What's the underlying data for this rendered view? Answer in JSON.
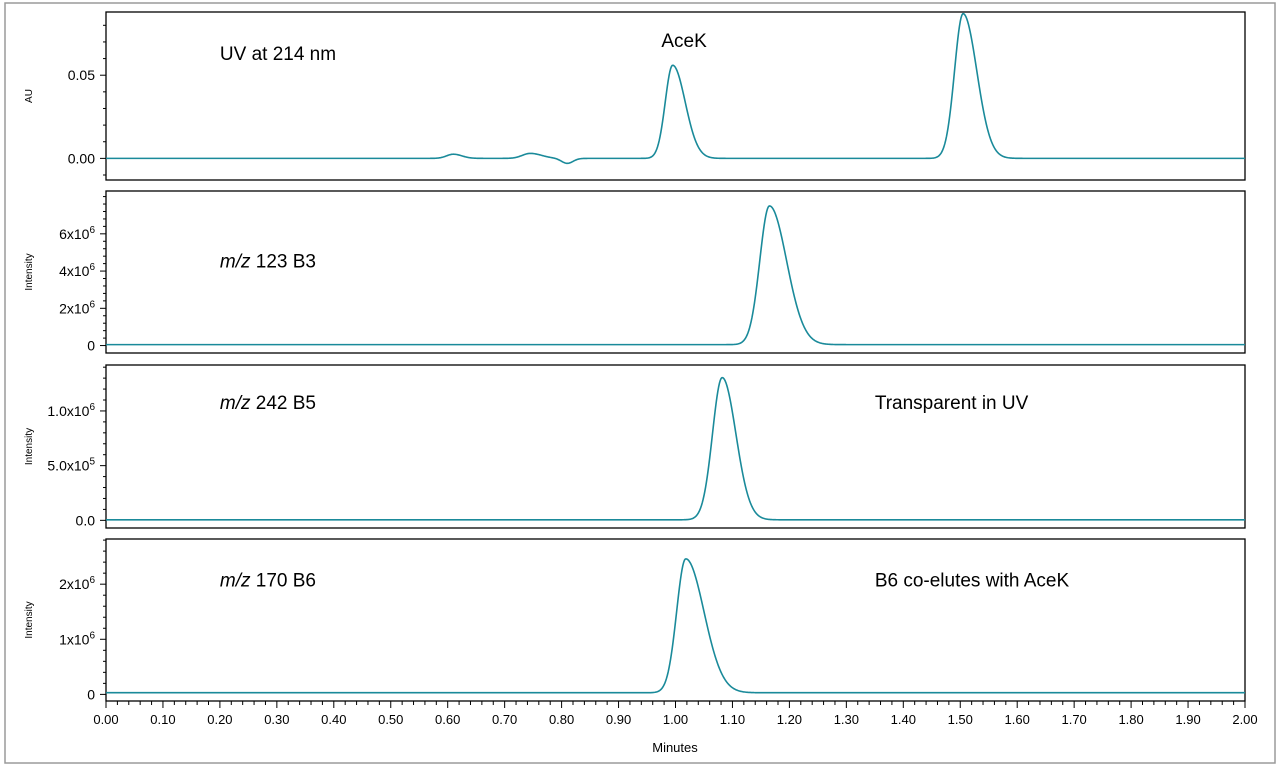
{
  "colors": {
    "trace": "#1a8a9a",
    "outer_border": "#9a9a9a",
    "frame": "#000000"
  },
  "chart_data": {
    "type": "line",
    "x_axis": {
      "label": "Minutes",
      "range": [
        0,
        2
      ],
      "ticks": [
        "0.00",
        "0.10",
        "0.20",
        "0.30",
        "0.40",
        "0.50",
        "0.60",
        "0.70",
        "0.80",
        "0.90",
        "1.00",
        "1.10",
        "1.20",
        "1.30",
        "1.40",
        "1.50",
        "1.60",
        "1.70",
        "1.80",
        "1.90",
        "2.00"
      ]
    },
    "panels": [
      {
        "ylabel": "AU",
        "ylim": [
          -0.013,
          0.088
        ],
        "yticks": [
          {
            "value": 0,
            "label": "0.00"
          },
          {
            "value": 0.05,
            "label": "0.05"
          }
        ],
        "annotations": [
          {
            "text": "UV at 214 nm",
            "x": 0.2,
            "y": 0.059
          },
          {
            "text": "AceK",
            "x": 1.015,
            "y": 0.067
          }
        ],
        "baseline": 0,
        "peaks": [
          {
            "rt": 0.61,
            "height": 0.0025,
            "sigma": 0.012,
            "tail": 0.015
          },
          {
            "rt": 0.745,
            "height": 0.003,
            "sigma": 0.014,
            "tail": 0.02
          },
          {
            "rt": 0.81,
            "height": -0.003,
            "sigma": 0.01,
            "tail": 0.01
          },
          {
            "rt": 0.995,
            "height": 0.056,
            "sigma": 0.013,
            "tail": 0.022
          },
          {
            "rt": 1.505,
            "height": 0.087,
            "sigma": 0.015,
            "tail": 0.024
          }
        ]
      },
      {
        "ylabel": "Intensity",
        "ylim": [
          -400000,
          8300000
        ],
        "yticks": [
          {
            "value": 0,
            "label": "0"
          },
          {
            "value": 2000000,
            "label": "2x10",
            "sup": "6"
          },
          {
            "value": 4000000,
            "label": "4x10",
            "sup": "6"
          },
          {
            "value": 6000000,
            "label": "6x10",
            "sup": "6"
          }
        ],
        "annotations": [
          {
            "text_italic": "m/z",
            "text": " 123 B3",
            "x": 0.2,
            "y": 4200000
          }
        ],
        "baseline": 50000,
        "peaks": [
          {
            "rt": 1.165,
            "height": 7450000,
            "sigma": 0.017,
            "tail": 0.03
          }
        ]
      },
      {
        "ylabel": "Intensity",
        "ylim": [
          -70000,
          1420000
        ],
        "yticks": [
          {
            "value": 0,
            "label": "0.0"
          },
          {
            "value": 500000,
            "label": "5.0x10",
            "sup": "5"
          },
          {
            "value": 1000000,
            "label": "1.0x10",
            "sup": "6"
          }
        ],
        "annotations": [
          {
            "text_italic": "m/z",
            "text": " 242 B5",
            "x": 0.2,
            "y": 1020000
          },
          {
            "text": "Transparent in UV",
            "x": 1.35,
            "y": 1020000
          }
        ],
        "baseline": 5000,
        "peaks": [
          {
            "rt": 1.082,
            "height": 1300000,
            "sigma": 0.017,
            "tail": 0.024
          }
        ]
      },
      {
        "ylabel": "Intensity",
        "ylim": [
          -120000,
          2820000
        ],
        "yticks": [
          {
            "value": 0,
            "label": "0"
          },
          {
            "value": 1000000,
            "label": "1x10",
            "sup": "6"
          },
          {
            "value": 2000000,
            "label": "2x10",
            "sup": "6"
          }
        ],
        "annotations": [
          {
            "text_italic": "m/z",
            "text": " 170 B6",
            "x": 0.2,
            "y": 1960000
          },
          {
            "text": "B6 co-elutes with AceK",
            "x": 1.35,
            "y": 1960000
          }
        ],
        "baseline": 30000,
        "peaks": [
          {
            "rt": 1.018,
            "height": 2430000,
            "sigma": 0.016,
            "tail": 0.032
          }
        ]
      }
    ]
  }
}
